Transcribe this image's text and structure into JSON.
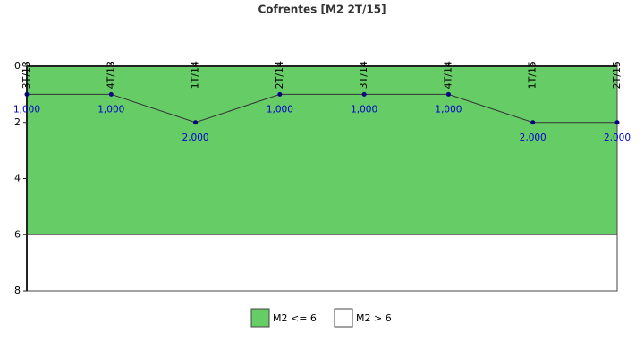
{
  "chart_data": {
    "type": "line",
    "title": "Cofrentes [M2 2T/15]",
    "categories": [
      "3T/13",
      "4T/13",
      "1T/14",
      "2T/14",
      "3T/14",
      "4T/14",
      "1T/15",
      "2T/15"
    ],
    "values": [
      1,
      1,
      2,
      1,
      1,
      1,
      2,
      2
    ],
    "value_labels": [
      "1,000",
      "1,000",
      "2,000",
      "1,000",
      "1,000",
      "1,000",
      "2,000",
      "2,000"
    ],
    "color": "#000080",
    "ylim": [
      0,
      8
    ],
    "yticks": [
      0,
      2,
      4,
      6,
      8
    ],
    "y_inverted": true,
    "bands": [
      {
        "name": "M2 <= 6",
        "color": "#66cc66",
        "from": 0,
        "to": 6
      },
      {
        "name": "M2 > 6",
        "color": "#ffffff",
        "from": 6,
        "to": 8
      }
    ]
  }
}
